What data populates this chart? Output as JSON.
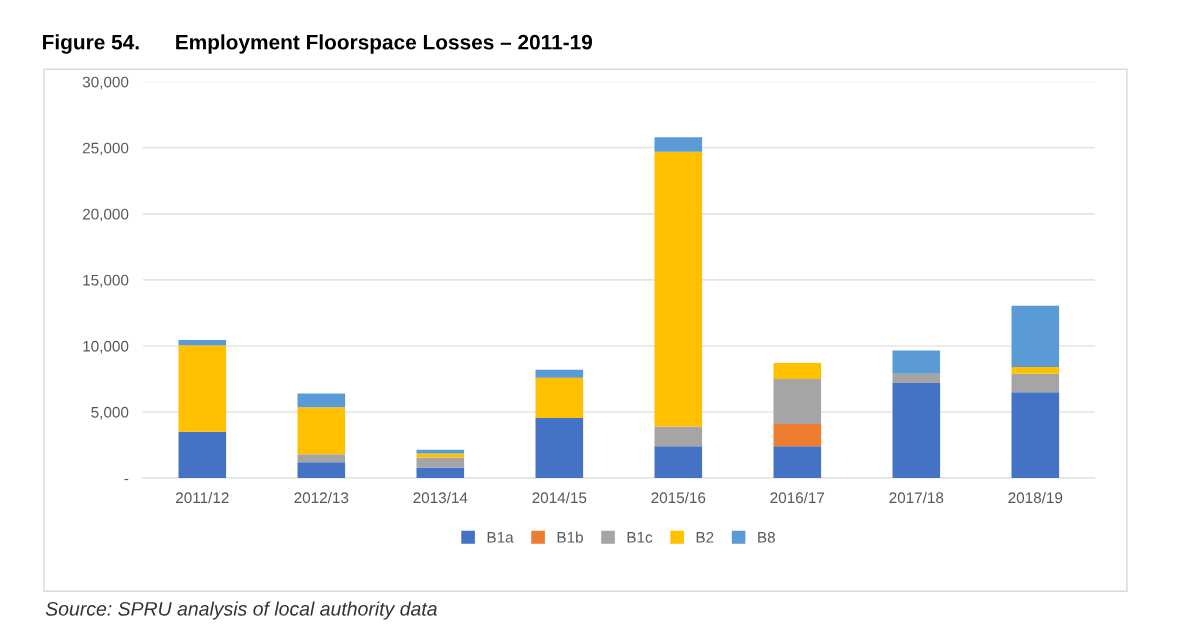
{
  "chart_data": {
    "type": "bar",
    "stacked": true,
    "title": "Figure 54.      Employment Floorspace Losses – 2011-19",
    "categories": [
      "2011/12",
      "2012/13",
      "2013/14",
      "2014/15",
      "2015/16",
      "2016/17",
      "2017/18",
      "2018/19"
    ],
    "series": [
      {
        "name": "B1a",
        "color": "#4472c4",
        "values": [
          3500,
          1200,
          800,
          4550,
          2400,
          2400,
          7200,
          6500
        ]
      },
      {
        "name": "B1b",
        "color": "#ed7d31",
        "values": [
          0,
          0,
          0,
          0,
          0,
          1700,
          0,
          0
        ]
      },
      {
        "name": "B1c",
        "color": "#a5a5a5",
        "values": [
          0,
          600,
          750,
          0,
          1500,
          3400,
          700,
          1400
        ]
      },
      {
        "name": "B2",
        "color": "#ffc000",
        "values": [
          6550,
          3550,
          300,
          3050,
          20800,
          1200,
          0,
          500
        ]
      },
      {
        "name": "B8",
        "color": "#5b9bd5",
        "values": [
          400,
          1050,
          300,
          600,
          1100,
          0,
          1750,
          4650
        ]
      }
    ],
    "ylim": [
      0,
      30000
    ],
    "yticks": [
      {
        "value": 0,
        "label": "-"
      },
      {
        "value": 5000,
        "label": "5,000"
      },
      {
        "value": 10000,
        "label": "10,000"
      },
      {
        "value": 15000,
        "label": "15,000"
      },
      {
        "value": 20000,
        "label": "20,000"
      },
      {
        "value": 25000,
        "label": "25,000"
      },
      {
        "value": 30000,
        "label": "30,000"
      }
    ],
    "grid": "y",
    "legend": "bottom",
    "annotations": [
      "Source: SPRU analysis of local authority data"
    ]
  }
}
